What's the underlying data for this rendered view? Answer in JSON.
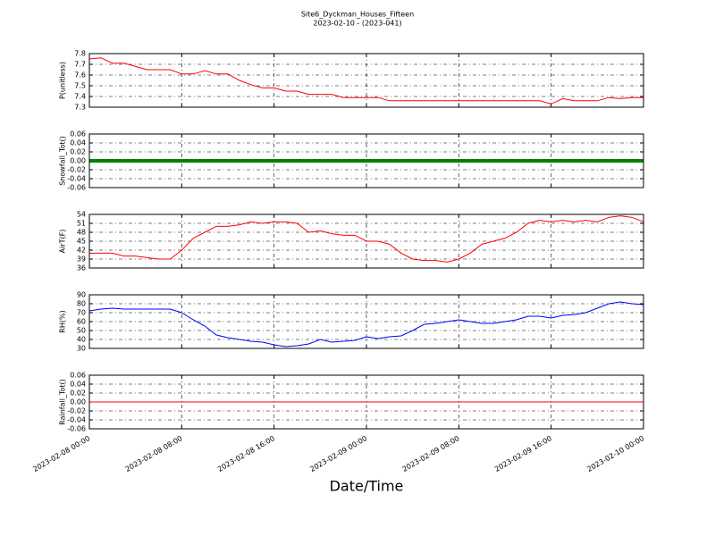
{
  "title": "Site6_Dyckman_Houses_Fifteen",
  "subtitle": "2023-02-10 - (2023-041)",
  "xlabel": "Date/Time",
  "chart_data": [
    {
      "type": "line",
      "ylabel": "P(unitless)",
      "x": [
        "2023-02-08 00:00",
        "2023-02-08 01:00",
        "2023-02-08 02:00",
        "2023-02-08 03:00",
        "2023-02-08 04:00",
        "2023-02-08 05:00",
        "2023-02-08 06:00",
        "2023-02-08 07:00",
        "2023-02-08 08:00",
        "2023-02-08 09:00",
        "2023-02-08 10:00",
        "2023-02-08 11:00",
        "2023-02-08 12:00",
        "2023-02-08 13:00",
        "2023-02-08 14:00",
        "2023-02-08 15:00",
        "2023-02-08 16:00",
        "2023-02-08 17:00",
        "2023-02-08 18:00",
        "2023-02-08 19:00",
        "2023-02-08 20:00",
        "2023-02-08 21:00",
        "2023-02-08 22:00",
        "2023-02-08 23:00",
        "2023-02-09 00:00",
        "2023-02-09 01:00",
        "2023-02-09 02:00",
        "2023-02-09 03:00",
        "2023-02-09 04:00",
        "2023-02-09 05:00",
        "2023-02-09 06:00",
        "2023-02-09 07:00",
        "2023-02-09 08:00",
        "2023-02-09 09:00",
        "2023-02-09 10:00",
        "2023-02-09 11:00",
        "2023-02-09 12:00",
        "2023-02-09 13:00",
        "2023-02-09 14:00",
        "2023-02-09 15:00",
        "2023-02-09 16:00",
        "2023-02-09 17:00",
        "2023-02-09 18:00",
        "2023-02-09 19:00",
        "2023-02-09 20:00",
        "2023-02-09 21:00",
        "2023-02-09 22:00",
        "2023-02-09 23:00",
        "2023-02-10 00:00"
      ],
      "series": [
        {
          "color": "#ff0000",
          "values": [
            7.75,
            7.76,
            7.71,
            7.71,
            7.68,
            7.65,
            7.65,
            7.65,
            7.61,
            7.61,
            7.64,
            7.61,
            7.61,
            7.55,
            7.51,
            7.48,
            7.48,
            7.45,
            7.45,
            7.42,
            7.42,
            7.42,
            7.39,
            7.39,
            7.39,
            7.39,
            7.36,
            7.36,
            7.36,
            7.36,
            7.36,
            7.36,
            7.36,
            7.36,
            7.36,
            7.36,
            7.36,
            7.36,
            7.36,
            7.36,
            7.33,
            7.38,
            7.36,
            7.36,
            7.36,
            7.39,
            7.38,
            7.39,
            7.39
          ]
        }
      ],
      "xlim": [
        "2023-02-08 00:00",
        "2023-02-10 00:00"
      ],
      "xticks": [
        "2023-02-08 00:00",
        "2023-02-08 08:00",
        "2023-02-08 16:00",
        "2023-02-09 00:00",
        "2023-02-09 08:00",
        "2023-02-09 16:00",
        "2023-02-10 00:00"
      ],
      "ylim": [
        7.3,
        7.8
      ],
      "yticks": [
        7.3,
        7.4,
        7.5,
        7.6,
        7.7,
        7.8
      ],
      "grid": true
    },
    {
      "type": "line",
      "ylabel": "Snowfall_Tot()",
      "x": [
        "2023-02-08 00:00",
        "2023-02-08 01:00",
        "2023-02-08 02:00",
        "2023-02-08 03:00",
        "2023-02-08 04:00",
        "2023-02-08 05:00",
        "2023-02-08 06:00",
        "2023-02-08 07:00",
        "2023-02-08 08:00",
        "2023-02-08 09:00",
        "2023-02-08 10:00",
        "2023-02-08 11:00",
        "2023-02-08 12:00",
        "2023-02-08 13:00",
        "2023-02-08 14:00",
        "2023-02-08 15:00",
        "2023-02-08 16:00",
        "2023-02-08 17:00",
        "2023-02-08 18:00",
        "2023-02-08 19:00",
        "2023-02-08 20:00",
        "2023-02-08 21:00",
        "2023-02-08 22:00",
        "2023-02-08 23:00",
        "2023-02-09 00:00",
        "2023-02-09 01:00",
        "2023-02-09 02:00",
        "2023-02-09 03:00",
        "2023-02-09 04:00",
        "2023-02-09 05:00",
        "2023-02-09 06:00",
        "2023-02-09 07:00",
        "2023-02-09 08:00",
        "2023-02-09 09:00",
        "2023-02-09 10:00",
        "2023-02-09 11:00",
        "2023-02-09 12:00",
        "2023-02-09 13:00",
        "2023-02-09 14:00",
        "2023-02-09 15:00",
        "2023-02-09 16:00",
        "2023-02-09 17:00",
        "2023-02-09 18:00",
        "2023-02-09 19:00",
        "2023-02-09 20:00",
        "2023-02-09 21:00",
        "2023-02-09 22:00",
        "2023-02-09 23:00",
        "2023-02-10 00:00"
      ],
      "series": [
        {
          "color": "#008000",
          "values": [
            0,
            0,
            0,
            0,
            0,
            0,
            0,
            0,
            0,
            0,
            0,
            0,
            0,
            0,
            0,
            0,
            0,
            0,
            0,
            0,
            0,
            0,
            0,
            0,
            0,
            0,
            0,
            0,
            0,
            0,
            0,
            0,
            0,
            0,
            0,
            0,
            0,
            0,
            0,
            0,
            0,
            0,
            0,
            0,
            0,
            0,
            0,
            0,
            0
          ]
        }
      ],
      "xlim": [
        "2023-02-08 00:00",
        "2023-02-10 00:00"
      ],
      "xticks": [
        "2023-02-08 00:00",
        "2023-02-08 08:00",
        "2023-02-08 16:00",
        "2023-02-09 00:00",
        "2023-02-09 08:00",
        "2023-02-09 16:00",
        "2023-02-10 00:00"
      ],
      "ylim": [
        -0.06,
        0.06
      ],
      "yticks": [
        -0.06,
        -0.04,
        -0.02,
        {
          "value": 0,
          "label": "0.00"
        },
        0.02,
        0.04,
        0.06
      ],
      "grid": true
    },
    {
      "type": "line",
      "ylabel": "AirT(F)",
      "x": [
        "2023-02-08 00:00",
        "2023-02-08 01:00",
        "2023-02-08 02:00",
        "2023-02-08 03:00",
        "2023-02-08 04:00",
        "2023-02-08 05:00",
        "2023-02-08 06:00",
        "2023-02-08 07:00",
        "2023-02-08 08:00",
        "2023-02-08 09:00",
        "2023-02-08 10:00",
        "2023-02-08 11:00",
        "2023-02-08 12:00",
        "2023-02-08 13:00",
        "2023-02-08 14:00",
        "2023-02-08 15:00",
        "2023-02-08 16:00",
        "2023-02-08 17:00",
        "2023-02-08 18:00",
        "2023-02-08 19:00",
        "2023-02-08 20:00",
        "2023-02-08 21:00",
        "2023-02-08 22:00",
        "2023-02-08 23:00",
        "2023-02-09 00:00",
        "2023-02-09 01:00",
        "2023-02-09 02:00",
        "2023-02-09 03:00",
        "2023-02-09 04:00",
        "2023-02-09 05:00",
        "2023-02-09 06:00",
        "2023-02-09 07:00",
        "2023-02-09 08:00",
        "2023-02-09 09:00",
        "2023-02-09 10:00",
        "2023-02-09 11:00",
        "2023-02-09 12:00",
        "2023-02-09 13:00",
        "2023-02-09 14:00",
        "2023-02-09 15:00",
        "2023-02-09 16:00",
        "2023-02-09 17:00",
        "2023-02-09 18:00",
        "2023-02-09 19:00",
        "2023-02-09 20:00",
        "2023-02-09 21:00",
        "2023-02-09 22:00",
        "2023-02-09 23:00",
        "2023-02-10 00:00"
      ],
      "series": [
        {
          "color": "#ff0000",
          "values": [
            41,
            41,
            41,
            40,
            40,
            39.5,
            39,
            39,
            42,
            46,
            48,
            50,
            50,
            50.5,
            51.5,
            51,
            51.5,
            51.5,
            51,
            48,
            48.5,
            47.5,
            47,
            47,
            45,
            45,
            44,
            41,
            39,
            38.5,
            38.5,
            38,
            39,
            41,
            44,
            45,
            46,
            48,
            51,
            52,
            51.5,
            52,
            51.5,
            52,
            51.5,
            53,
            53.5,
            53,
            51.5
          ]
        }
      ],
      "xlim": [
        "2023-02-08 00:00",
        "2023-02-10 00:00"
      ],
      "xticks": [
        "2023-02-08 00:00",
        "2023-02-08 08:00",
        "2023-02-08 16:00",
        "2023-02-09 00:00",
        "2023-02-09 08:00",
        "2023-02-09 16:00",
        "2023-02-10 00:00"
      ],
      "ylim": [
        36,
        54
      ],
      "yticks": [
        36,
        39,
        42,
        45,
        48,
        51,
        54
      ],
      "grid": true
    },
    {
      "type": "line",
      "ylabel": "RH(%)",
      "x": [
        "2023-02-08 00:00",
        "2023-02-08 01:00",
        "2023-02-08 02:00",
        "2023-02-08 03:00",
        "2023-02-08 04:00",
        "2023-02-08 05:00",
        "2023-02-08 06:00",
        "2023-02-08 07:00",
        "2023-02-08 08:00",
        "2023-02-08 09:00",
        "2023-02-08 10:00",
        "2023-02-08 11:00",
        "2023-02-08 12:00",
        "2023-02-08 13:00",
        "2023-02-08 14:00",
        "2023-02-08 15:00",
        "2023-02-08 16:00",
        "2023-02-08 17:00",
        "2023-02-08 18:00",
        "2023-02-08 19:00",
        "2023-02-08 20:00",
        "2023-02-08 21:00",
        "2023-02-08 22:00",
        "2023-02-08 23:00",
        "2023-02-09 00:00",
        "2023-02-09 01:00",
        "2023-02-09 02:00",
        "2023-02-09 03:00",
        "2023-02-09 04:00",
        "2023-02-09 05:00",
        "2023-02-09 06:00",
        "2023-02-09 07:00",
        "2023-02-09 08:00",
        "2023-02-09 09:00",
        "2023-02-09 10:00",
        "2023-02-09 11:00",
        "2023-02-09 12:00",
        "2023-02-09 13:00",
        "2023-02-09 14:00",
        "2023-02-09 15:00",
        "2023-02-09 16:00",
        "2023-02-09 17:00",
        "2023-02-09 18:00",
        "2023-02-09 19:00",
        "2023-02-09 20:00",
        "2023-02-09 21:00",
        "2023-02-09 22:00",
        "2023-02-09 23:00",
        "2023-02-10 00:00"
      ],
      "series": [
        {
          "color": "#0000ff",
          "values": [
            72,
            74,
            75,
            74,
            74,
            74,
            74,
            74,
            70,
            62,
            55,
            45,
            42,
            40,
            38,
            37,
            34,
            32,
            33,
            35,
            40,
            37,
            38,
            39,
            43,
            41,
            43,
            44,
            50,
            57,
            58,
            60,
            62,
            60,
            58,
            58,
            60,
            62,
            66,
            66,
            64,
            67,
            68,
            70,
            75,
            80,
            82,
            80,
            79
          ]
        }
      ],
      "xlim": [
        "2023-02-08 00:00",
        "2023-02-10 00:00"
      ],
      "xticks": [
        "2023-02-08 00:00",
        "2023-02-08 08:00",
        "2023-02-08 16:00",
        "2023-02-09 00:00",
        "2023-02-09 08:00",
        "2023-02-09 16:00",
        "2023-02-10 00:00"
      ],
      "ylim": [
        30,
        90
      ],
      "yticks": [
        30,
        40,
        50,
        60,
        70,
        80,
        90
      ],
      "grid": true
    },
    {
      "type": "line",
      "ylabel": "Rainfall_Tot()",
      "x": [
        "2023-02-08 00:00",
        "2023-02-08 01:00",
        "2023-02-08 02:00",
        "2023-02-08 03:00",
        "2023-02-08 04:00",
        "2023-02-08 05:00",
        "2023-02-08 06:00",
        "2023-02-08 07:00",
        "2023-02-08 08:00",
        "2023-02-08 09:00",
        "2023-02-08 10:00",
        "2023-02-08 11:00",
        "2023-02-08 12:00",
        "2023-02-08 13:00",
        "2023-02-08 14:00",
        "2023-02-08 15:00",
        "2023-02-08 16:00",
        "2023-02-08 17:00",
        "2023-02-08 18:00",
        "2023-02-08 19:00",
        "2023-02-08 20:00",
        "2023-02-08 21:00",
        "2023-02-08 22:00",
        "2023-02-08 23:00",
        "2023-02-09 00:00",
        "2023-02-09 01:00",
        "2023-02-09 02:00",
        "2023-02-09 03:00",
        "2023-02-09 04:00",
        "2023-02-09 05:00",
        "2023-02-09 06:00",
        "2023-02-09 07:00",
        "2023-02-09 08:00",
        "2023-02-09 09:00",
        "2023-02-09 10:00",
        "2023-02-09 11:00",
        "2023-02-09 12:00",
        "2023-02-09 13:00",
        "2023-02-09 14:00",
        "2023-02-09 15:00",
        "2023-02-09 16:00",
        "2023-02-09 17:00",
        "2023-02-09 18:00",
        "2023-02-09 19:00",
        "2023-02-09 20:00",
        "2023-02-09 21:00",
        "2023-02-09 22:00",
        "2023-02-09 23:00",
        "2023-02-10 00:00"
      ],
      "series": [
        {
          "color": "#ff0000",
          "values": [
            0,
            0,
            0,
            0,
            0,
            0,
            0,
            0,
            0,
            0,
            0,
            0,
            0,
            0,
            0,
            0,
            0,
            0,
            0,
            0,
            0,
            0,
            0,
            0,
            0,
            0,
            0,
            0,
            0,
            0,
            0,
            0,
            0,
            0,
            0,
            0,
            0,
            0,
            0,
            0,
            0,
            0,
            0,
            0,
            0,
            0,
            0,
            0,
            0
          ]
        }
      ],
      "xlim": [
        "2023-02-08 00:00",
        "2023-02-10 00:00"
      ],
      "xticks": [
        "2023-02-08 00:00",
        "2023-02-08 08:00",
        "2023-02-08 16:00",
        "2023-02-09 00:00",
        "2023-02-09 08:00",
        "2023-02-09 16:00",
        "2023-02-10 00:00"
      ],
      "ylim": [
        -0.06,
        0.06
      ],
      "yticks": [
        -0.06,
        -0.04,
        -0.02,
        {
          "value": 0,
          "label": "0.00"
        },
        0.02,
        0.04,
        0.06
      ],
      "grid": true,
      "show_xtick_labels": true
    }
  ]
}
